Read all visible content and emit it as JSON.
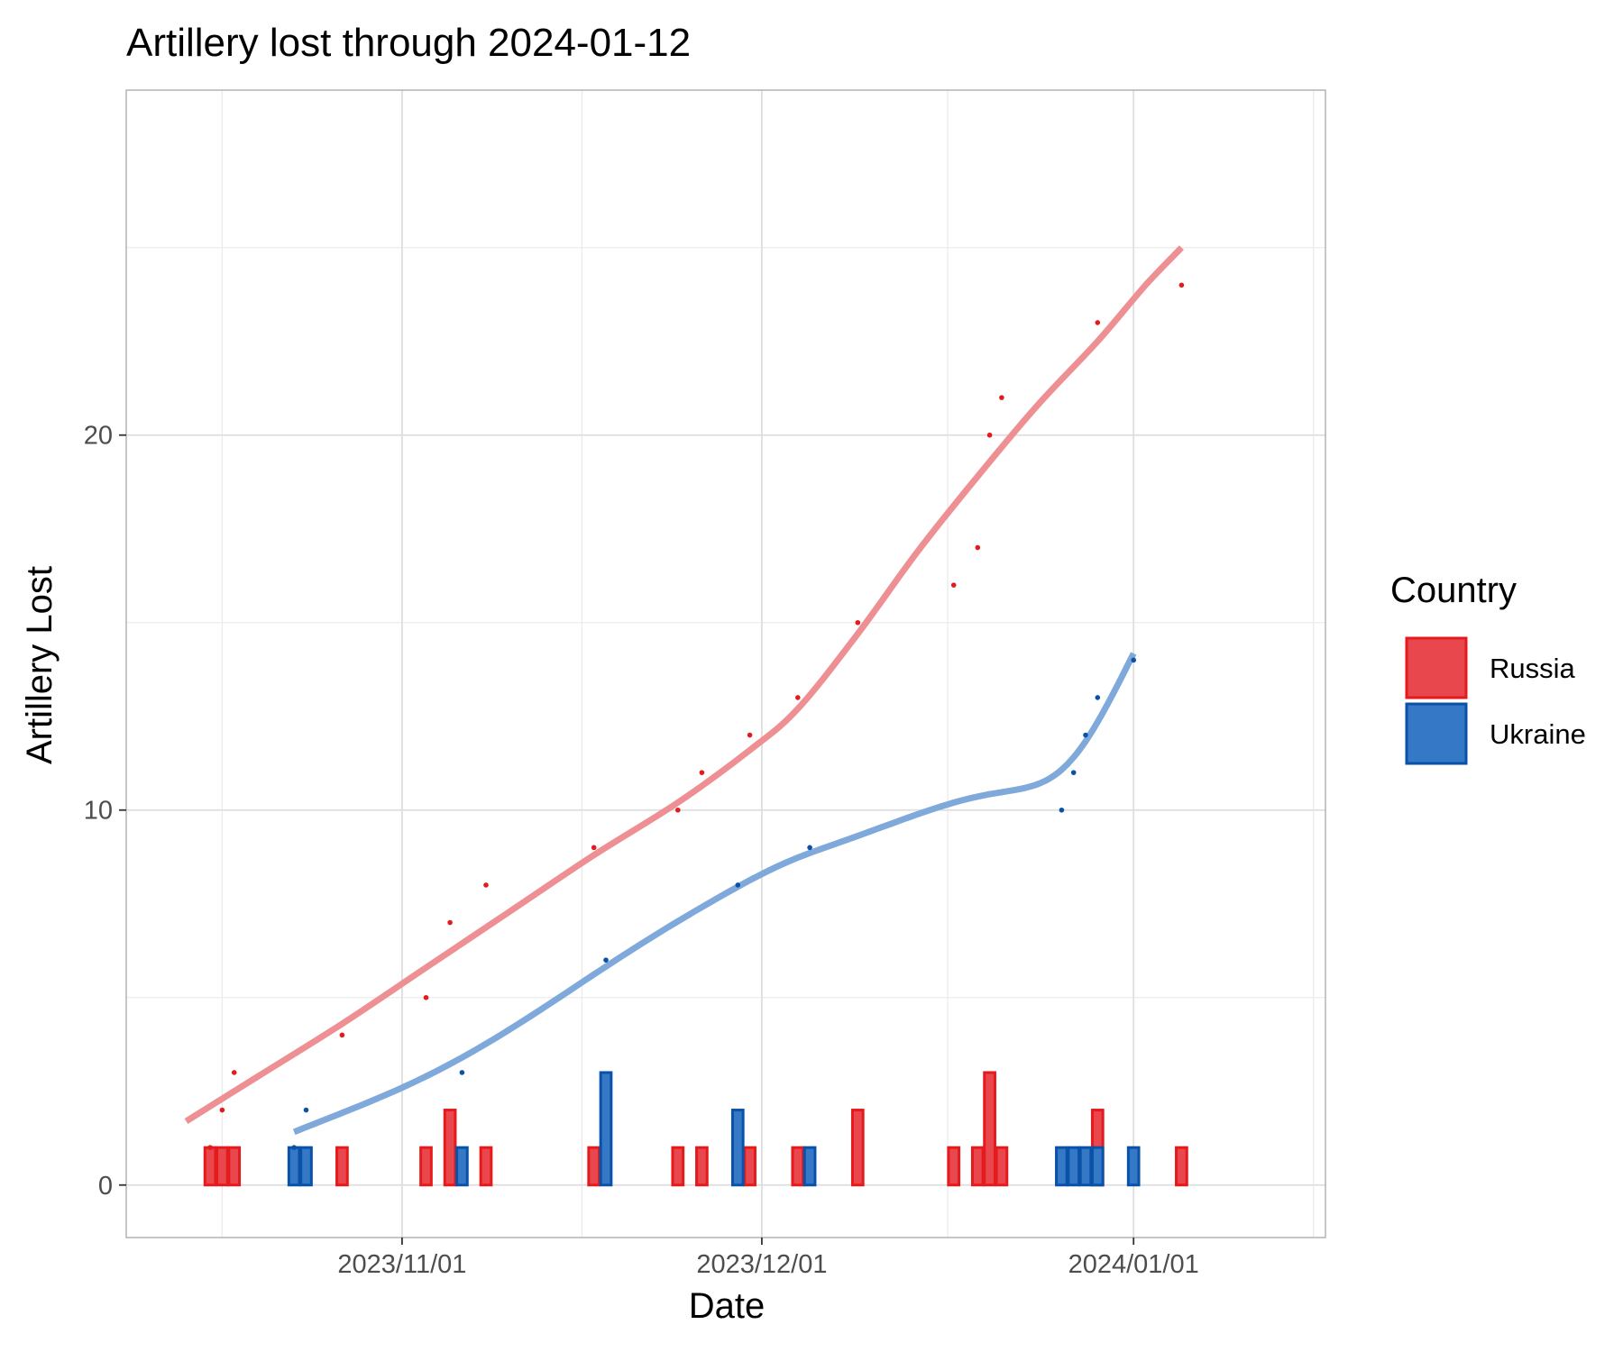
{
  "chart_data": {
    "type": "line",
    "title": "Artillery lost through 2024-01-12",
    "xlabel": "Date",
    "ylabel": "Artillery Lost",
    "x_ticks": [
      {
        "date": "2023-11-01",
        "label": "2023/11/01"
      },
      {
        "date": "2023-12-01",
        "label": "2023/12/01"
      },
      {
        "date": "2024-01-01",
        "label": "2024/01/01"
      }
    ],
    "x_range": [
      "2023-10-09",
      "2024-01-17"
    ],
    "y_ticks": [
      0,
      10,
      20
    ],
    "ylim": [
      -1.4,
      29.2
    ],
    "grid": true,
    "legend": {
      "title": "Country",
      "position": "right",
      "entries": [
        "Russia",
        "Ukraine"
      ]
    },
    "series": [
      {
        "name": "Russia",
        "color": "#E41A1C",
        "fill": "#E8474D",
        "smooth_color": "#EE8F93",
        "daily": [
          {
            "date": "2023-10-16",
            "value": 1
          },
          {
            "date": "2023-10-17",
            "value": 1
          },
          {
            "date": "2023-10-18",
            "value": 1
          },
          {
            "date": "2023-10-27",
            "value": 1
          },
          {
            "date": "2023-11-03",
            "value": 1
          },
          {
            "date": "2023-11-05",
            "value": 2
          },
          {
            "date": "2023-11-08",
            "value": 1
          },
          {
            "date": "2023-11-17",
            "value": 1
          },
          {
            "date": "2023-11-24",
            "value": 1
          },
          {
            "date": "2023-11-26",
            "value": 1
          },
          {
            "date": "2023-11-30",
            "value": 1
          },
          {
            "date": "2023-12-04",
            "value": 1
          },
          {
            "date": "2023-12-09",
            "value": 2
          },
          {
            "date": "2023-12-17",
            "value": 1
          },
          {
            "date": "2023-12-19",
            "value": 1
          },
          {
            "date": "2023-12-20",
            "value": 3
          },
          {
            "date": "2023-12-21",
            "value": 1
          },
          {
            "date": "2023-12-29",
            "value": 2
          },
          {
            "date": "2024-01-05",
            "value": 1
          }
        ],
        "cumulative": [
          {
            "date": "2023-10-16",
            "value": 1
          },
          {
            "date": "2023-10-17",
            "value": 2
          },
          {
            "date": "2023-10-18",
            "value": 3
          },
          {
            "date": "2023-10-27",
            "value": 4
          },
          {
            "date": "2023-11-03",
            "value": 5
          },
          {
            "date": "2023-11-05",
            "value": 7
          },
          {
            "date": "2023-11-08",
            "value": 8
          },
          {
            "date": "2023-11-17",
            "value": 9
          },
          {
            "date": "2023-11-24",
            "value": 10
          },
          {
            "date": "2023-11-26",
            "value": 11
          },
          {
            "date": "2023-11-30",
            "value": 12
          },
          {
            "date": "2023-12-04",
            "value": 13
          },
          {
            "date": "2023-12-09",
            "value": 15
          },
          {
            "date": "2023-12-17",
            "value": 16
          },
          {
            "date": "2023-12-19",
            "value": 17
          },
          {
            "date": "2023-12-20",
            "value": 20
          },
          {
            "date": "2023-12-21",
            "value": 21
          },
          {
            "date": "2023-12-29",
            "value": 23
          },
          {
            "date": "2024-01-05",
            "value": 24
          }
        ],
        "smooth": [
          {
            "date": "2023-10-14",
            "value": 1.7
          },
          {
            "date": "2023-10-20",
            "value": 2.9
          },
          {
            "date": "2023-10-27",
            "value": 4.3
          },
          {
            "date": "2023-11-03",
            "value": 5.8
          },
          {
            "date": "2023-11-10",
            "value": 7.3
          },
          {
            "date": "2023-11-17",
            "value": 8.8
          },
          {
            "date": "2023-11-24",
            "value": 10.2
          },
          {
            "date": "2023-11-30",
            "value": 11.6
          },
          {
            "date": "2023-12-04",
            "value": 12.7
          },
          {
            "date": "2023-12-09",
            "value": 14.7
          },
          {
            "date": "2023-12-14",
            "value": 16.9
          },
          {
            "date": "2023-12-19",
            "value": 18.9
          },
          {
            "date": "2023-12-24",
            "value": 20.8
          },
          {
            "date": "2023-12-29",
            "value": 22.5
          },
          {
            "date": "2024-01-02",
            "value": 24.0
          },
          {
            "date": "2024-01-05",
            "value": 25.0
          }
        ]
      },
      {
        "name": "Ukraine",
        "color": "#0A52A8",
        "fill": "#3478C6",
        "smooth_color": "#80A9DB",
        "daily": [
          {
            "date": "2023-10-23",
            "value": 1
          },
          {
            "date": "2023-10-24",
            "value": 1
          },
          {
            "date": "2023-11-06",
            "value": 1
          },
          {
            "date": "2023-11-18",
            "value": 3
          },
          {
            "date": "2023-11-29",
            "value": 2
          },
          {
            "date": "2023-12-05",
            "value": 1
          },
          {
            "date": "2023-12-26",
            "value": 1
          },
          {
            "date": "2023-12-27",
            "value": 1
          },
          {
            "date": "2023-12-28",
            "value": 1
          },
          {
            "date": "2023-12-29",
            "value": 1
          },
          {
            "date": "2024-01-01",
            "value": 1
          }
        ],
        "cumulative": [
          {
            "date": "2023-10-23",
            "value": 1
          },
          {
            "date": "2023-10-24",
            "value": 2
          },
          {
            "date": "2023-11-06",
            "value": 3
          },
          {
            "date": "2023-11-18",
            "value": 6
          },
          {
            "date": "2023-11-29",
            "value": 8
          },
          {
            "date": "2023-12-05",
            "value": 9
          },
          {
            "date": "2023-12-26",
            "value": 10
          },
          {
            "date": "2023-12-27",
            "value": 11
          },
          {
            "date": "2023-12-28",
            "value": 12
          },
          {
            "date": "2023-12-29",
            "value": 13
          },
          {
            "date": "2024-01-01",
            "value": 14
          }
        ]
      }
    ]
  }
}
